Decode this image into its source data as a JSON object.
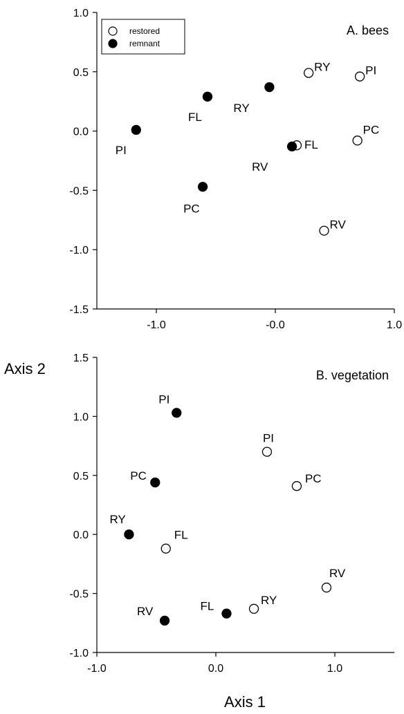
{
  "chart_data": [
    {
      "type": "scatter",
      "title": "A. bees",
      "xlim": [
        -1.5,
        1.0
      ],
      "ylim": [
        -1.5,
        1.0
      ],
      "x_ticks": [
        "-1.0",
        "-0.0",
        "1.0"
      ],
      "x_tick_values": [
        -1.0,
        0.0,
        1.0
      ],
      "y_ticks": [
        "1.0",
        "0.5",
        "0.0",
        "-0.5",
        "-1.0",
        "-1.5"
      ],
      "y_tick_values": [
        1.0,
        0.5,
        0.0,
        -0.5,
        -1.0,
        -1.5
      ],
      "legend": {
        "placement": "top-left",
        "entries": [
          {
            "label": "restored",
            "marker": "open"
          },
          {
            "label": "remnant",
            "marker": "filled"
          }
        ]
      },
      "series": [
        {
          "name": "restored",
          "marker": "open",
          "points": [
            {
              "label": "RY",
              "x": 0.28,
              "y": 0.49
            },
            {
              "label": "PI",
              "x": 0.71,
              "y": 0.46
            },
            {
              "label": "FL",
              "x": 0.18,
              "y": -0.12
            },
            {
              "label": "PC",
              "x": 0.69,
              "y": -0.08
            },
            {
              "label": "RV",
              "x": 0.41,
              "y": -0.84
            }
          ]
        },
        {
          "name": "remnant",
          "marker": "filled",
          "points": [
            {
              "label": "FL",
              "x": -0.57,
              "y": 0.29
            },
            {
              "label": "RY",
              "x": -0.05,
              "y": 0.37
            },
            {
              "label": "PI",
              "x": -1.17,
              "y": 0.01
            },
            {
              "label": "RV",
              "x": 0.14,
              "y": -0.13
            },
            {
              "label": "PC",
              "x": -0.61,
              "y": -0.47
            }
          ]
        }
      ]
    },
    {
      "type": "scatter",
      "title": "B. vegetation",
      "xlim": [
        -1.0,
        1.5
      ],
      "ylim": [
        -1.0,
        1.5
      ],
      "x_ticks": [
        "-1.0",
        "0.0",
        "1.0"
      ],
      "x_tick_values": [
        -1.0,
        0.0,
        1.0
      ],
      "y_ticks": [
        "1.5",
        "1.0",
        "0.5",
        "0.0",
        "-0.5",
        "-1.0"
      ],
      "y_tick_values": [
        1.5,
        1.0,
        0.5,
        0.0,
        -0.5,
        -1.0
      ],
      "series": [
        {
          "name": "restored",
          "marker": "open",
          "points": [
            {
              "label": "PI",
              "x": 0.43,
              "y": 0.7
            },
            {
              "label": "PC",
              "x": 0.68,
              "y": 0.41
            },
            {
              "label": "FL",
              "x": -0.42,
              "y": -0.12
            },
            {
              "label": "RV",
              "x": 0.93,
              "y": -0.45
            },
            {
              "label": "RY",
              "x": 0.32,
              "y": -0.63
            }
          ]
        },
        {
          "name": "remnant",
          "marker": "filled",
          "points": [
            {
              "label": "PI",
              "x": -0.33,
              "y": 1.03
            },
            {
              "label": "PC",
              "x": -0.51,
              "y": 0.44
            },
            {
              "label": "RY",
              "x": -0.73,
              "y": 0.0
            },
            {
              "label": "RV",
              "x": -0.43,
              "y": -0.73
            },
            {
              "label": "FL",
              "x": 0.09,
              "y": -0.67
            }
          ]
        }
      ]
    }
  ],
  "axis_titles": {
    "y": "Axis 2",
    "x": "Axis 1"
  }
}
